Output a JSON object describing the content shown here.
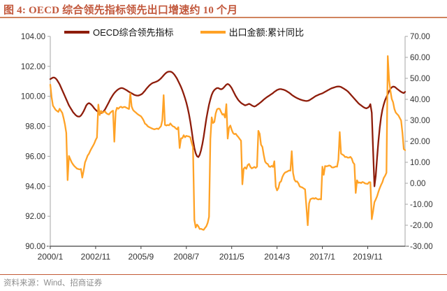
{
  "header": {
    "title": "图 4: OECD 综合领先指标领先出口增速约 10 个月"
  },
  "legend": [
    {
      "label": "OECD综合领先指标",
      "color": "#8E1D0B"
    },
    {
      "label": "出口金额:累计同比",
      "color": "#FFA226"
    }
  ],
  "footer": {
    "source": "资料来源：Wind、招商证券"
  },
  "colors": {
    "accent_title": "#C2583C",
    "title_rule": "#D0845E",
    "footer_rule": "#C25A36",
    "axis_line": "#A6A6A6",
    "bottom_axis_line": "#404040",
    "axis_text": "#333333",
    "oecd_line": "#8E1D0B",
    "export_line": "#FFA226"
  },
  "chart_data": {
    "type": "line",
    "title": "图 4: OECD 综合领先指标领先出口增速约 10 个月",
    "frequency": "monthly",
    "x_start": "2000/1",
    "x_end": "2022/3",
    "x_tick_labels": [
      "2000/1",
      "2002/11",
      "2005/9",
      "2008/7",
      "2011/5",
      "2014/3",
      "2017/1",
      "2019/11"
    ],
    "grid": false,
    "legend_position": "top",
    "left_axis": {
      "min": 90,
      "max": 104,
      "ticks": [
        "104.00",
        "102.00",
        "100.00",
        "98.00",
        "96.00",
        "94.00",
        "92.00",
        "90.00"
      ]
    },
    "right_axis": {
      "min": -30,
      "max": 70,
      "ticks": [
        "70.00",
        "60.00",
        "50.00",
        "40.00",
        "30.00",
        "20.00",
        "10.00",
        "0.00",
        "-10.00",
        "-20.00",
        "-30.00"
      ]
    },
    "series": [
      {
        "name": "OECD综合领先指标",
        "key": "oecd-cli-line",
        "axis": "left",
        "color": "#8E1D0B",
        "values": [
          101.15,
          101.2,
          101.25,
          101.25,
          101.2,
          101.1,
          100.95,
          100.8,
          100.6,
          100.4,
          100.2,
          100.0,
          99.8,
          99.6,
          99.4,
          99.25,
          99.1,
          98.95,
          98.85,
          98.75,
          98.68,
          98.65,
          98.65,
          98.72,
          98.85,
          99.0,
          99.2,
          99.4,
          99.5,
          99.55,
          99.5,
          99.42,
          99.32,
          99.2,
          99.1,
          99.02,
          98.95,
          98.9,
          98.88,
          98.92,
          99.0,
          99.12,
          99.28,
          99.45,
          99.62,
          99.8,
          99.95,
          100.1,
          100.22,
          100.32,
          100.4,
          100.47,
          100.52,
          100.55,
          100.55,
          100.52,
          100.47,
          100.42,
          100.36,
          100.3,
          100.25,
          100.2,
          100.15,
          100.1,
          100.07,
          100.05,
          100.05,
          100.08,
          100.12,
          100.18,
          100.28,
          100.38,
          100.5,
          100.6,
          100.7,
          100.78,
          100.85,
          100.9,
          100.93,
          100.96,
          101.0,
          101.05,
          101.12,
          101.2,
          101.3,
          101.4,
          101.5,
          101.58,
          101.63,
          101.65,
          101.65,
          101.62,
          101.55,
          101.45,
          101.32,
          101.18,
          101.0,
          100.82,
          100.62,
          100.4,
          100.15,
          99.88,
          99.58,
          99.22,
          98.8,
          98.3,
          97.72,
          97.1,
          96.55,
          96.2,
          96.0,
          95.95,
          96.1,
          96.4,
          96.8,
          97.3,
          97.9,
          98.5,
          99.0,
          99.45,
          99.8,
          100.1,
          100.3,
          100.42,
          100.5,
          100.55,
          100.55,
          100.5,
          100.47,
          100.5,
          100.58,
          100.68,
          100.78,
          100.82,
          100.78,
          100.68,
          100.55,
          100.38,
          100.2,
          100.02,
          99.88,
          99.75,
          99.65,
          99.56,
          99.5,
          99.45,
          99.4,
          99.42,
          99.46,
          99.5,
          99.46,
          99.4,
          99.35,
          99.32,
          99.35,
          99.42,
          99.48,
          99.55,
          99.62,
          99.7,
          99.78,
          99.85,
          99.92,
          99.98,
          100.04,
          100.1,
          100.16,
          100.22,
          100.3,
          100.36,
          100.42,
          100.46,
          100.48,
          100.48,
          100.46,
          100.44,
          100.4,
          100.36,
          100.3,
          100.25,
          100.18,
          100.1,
          100.04,
          99.98,
          99.93,
          99.88,
          99.84,
          99.8,
          99.77,
          99.74,
          99.72,
          99.7,
          99.69,
          99.7,
          99.73,
          99.78,
          99.84,
          99.9,
          99.96,
          100.02,
          100.06,
          100.1,
          100.14,
          100.17,
          100.2,
          100.25,
          100.3,
          100.35,
          100.4,
          100.45,
          100.5,
          100.54,
          100.57,
          100.6,
          100.63,
          100.65,
          100.66,
          100.65,
          100.62,
          100.57,
          100.52,
          100.46,
          100.4,
          100.33,
          100.24,
          100.14,
          100.04,
          99.94,
          99.84,
          99.74,
          99.64,
          99.54,
          99.46,
          99.4,
          99.33,
          99.27,
          99.22,
          99.2,
          99.24,
          99.3,
          99.48,
          98.9,
          96.4,
          94.0,
          94.7,
          95.9,
          97.0,
          97.9,
          98.6,
          99.1,
          99.45,
          99.75,
          99.95,
          100.15,
          100.35,
          100.5,
          100.6,
          100.65,
          100.64,
          100.58,
          100.5,
          100.43,
          100.36,
          100.3,
          100.25,
          100.22,
          100.3
        ]
      },
      {
        "name": "出口金额:累计同比",
        "key": "export-yoy-line",
        "axis": "right",
        "color": "#FFA226",
        "values": [
          47.0,
          41.0,
          37.0,
          36.0,
          35.0,
          34.5,
          34.0,
          35.5,
          34.5,
          33.5,
          31.0,
          28.0,
          24.0,
          1.5,
          13.0,
          11.5,
          10.0,
          9.0,
          8.2,
          7.6,
          7.0,
          6.8,
          6.6,
          6.8,
          2.7,
          5.9,
          9.9,
          11.5,
          13.2,
          14.1,
          15.5,
          16.7,
          17.8,
          19.0,
          20.6,
          21.8,
          37.5,
          32.5,
          34.5,
          33.5,
          34.0,
          34.3,
          33.4,
          33.0,
          32.8,
          33.6,
          34.2,
          34.6,
          19.8,
          34.0,
          36.0,
          35.5,
          36.2,
          36.5,
          36.0,
          36.3,
          36.4,
          36.0,
          35.7,
          35.4,
          42.8,
          36.6,
          35.0,
          34.3,
          33.8,
          33.2,
          32.7,
          32.3,
          31.9,
          31.0,
          29.9,
          28.4,
          28.0,
          27.2,
          26.8,
          26.5,
          26.2,
          25.9,
          25.7,
          25.9,
          26.1,
          25.8,
          26.5,
          27.2,
          30.0,
          42.0,
          27.8,
          27.5,
          27.8,
          27.6,
          28.5,
          27.7,
          27.1,
          26.9,
          26.2,
          25.7,
          26.7,
          16.8,
          21.4,
          21.5,
          22.9,
          21.9,
          22.6,
          22.4,
          22.3,
          21.9,
          19.3,
          17.2,
          -17.5,
          -21.1,
          -19.7,
          -20.5,
          -21.8,
          -21.7,
          -22.0,
          -22.2,
          -21.3,
          -20.5,
          -18.8,
          -16.0,
          21.0,
          31.4,
          28.7,
          29.2,
          33.2,
          35.2,
          35.6,
          35.5,
          34.0,
          32.7,
          33.0,
          31.3,
          37.7,
          21.3,
          26.5,
          27.5,
          25.5,
          24.0,
          23.4,
          23.6,
          22.7,
          22.0,
          21.1,
          20.3,
          -0.5,
          6.9,
          7.6,
          6.9,
          8.7,
          9.2,
          7.8,
          7.1,
          7.4,
          7.8,
          7.3,
          7.9,
          25.0,
          23.6,
          18.4,
          17.3,
          13.5,
          10.4,
          9.5,
          9.2,
          8.0,
          7.8,
          8.3,
          7.8,
          10.5,
          -1.6,
          -3.4,
          -2.3,
          0.4,
          0.9,
          3.0,
          4.3,
          5.1,
          5.4,
          5.7,
          6.1,
          6.0,
          15.3,
          4.9,
          1.8,
          0.8,
          0.9,
          0.0,
          -1.5,
          -1.8,
          -2.0,
          -2.5,
          -2.9,
          -11.2,
          -20.0,
          -9.6,
          -7.6,
          -7.3,
          -7.1,
          -7.4,
          -7.0,
          -7.5,
          -7.7,
          -7.5,
          -7.7,
          7.9,
          4.0,
          8.2,
          8.1,
          8.2,
          8.5,
          8.3,
          7.6,
          7.5,
          7.7,
          8.0,
          7.9,
          11.2,
          24.4,
          14.1,
          13.7,
          13.3,
          12.5,
          12.6,
          12.2,
          12.2,
          12.6,
          11.8,
          9.9,
          9.1,
          -4.6,
          1.4,
          0.2,
          0.4,
          0.1,
          0.6,
          0.4,
          -0.1,
          -0.2,
          -0.3,
          0.5,
          0.5,
          -17.1,
          -13.3,
          -9.0,
          -7.7,
          -6.2,
          -4.1,
          -2.3,
          -0.8,
          0.5,
          2.5,
          3.6,
          5.0,
          60.6,
          49.2,
          44.0,
          40.2,
          38.6,
          35.4,
          33.7,
          33.0,
          32.3,
          31.1,
          29.9,
          24.1,
          16.3,
          15.8
        ]
      }
    ]
  }
}
